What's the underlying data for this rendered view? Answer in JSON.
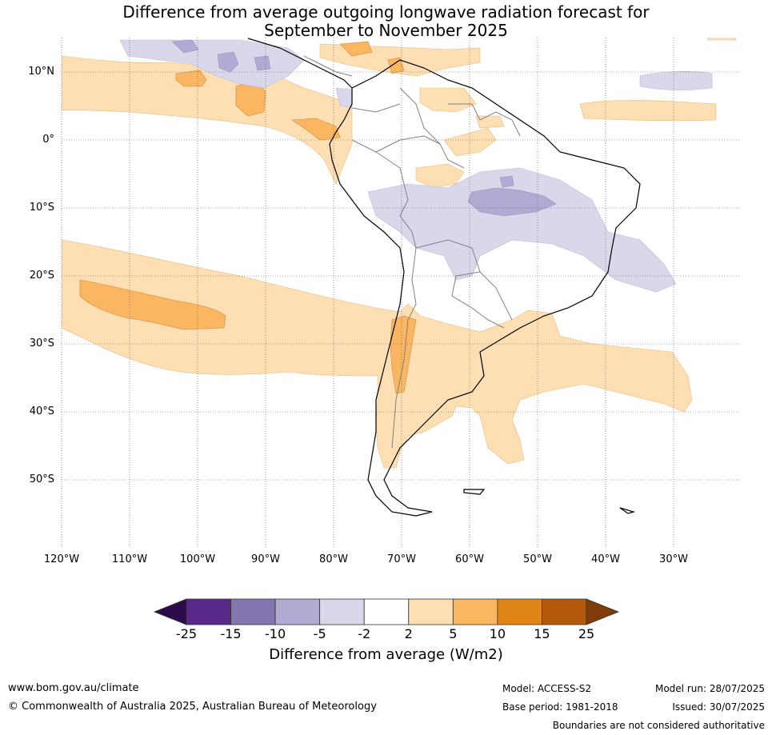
{
  "title": "Difference from average outgoing longwave radiation forecast for\nSeptember to November 2025",
  "map": {
    "lat_labels": [
      "10°N",
      "0°",
      "10°S",
      "20°S",
      "30°S",
      "40°S",
      "50°S"
    ],
    "lon_labels": [
      "120°W",
      "110°W",
      "100°W",
      "90°W",
      "80°W",
      "70°W",
      "60°W",
      "50°W",
      "40°W",
      "30°W"
    ],
    "colors": {
      "land_outline": "#000000",
      "country_border": "#808080",
      "gridline": "#555555"
    }
  },
  "colorbar": {
    "ticks": [
      "-25",
      "-15",
      "-10",
      "-5",
      "-2",
      "2",
      "5",
      "10",
      "15",
      "25"
    ],
    "colors": [
      "#2d0a4a",
      "#5a2a8a",
      "#8477b0",
      "#b1aad2",
      "#d8d8ea",
      "#ffffff",
      "#fddfb3",
      "#fbb662",
      "#e08618",
      "#b35a0a",
      "#7f3c08"
    ],
    "title": "Difference from average (W/m2)"
  },
  "footer": {
    "website": "www.bom.gov.au/climate",
    "copyright": "© Commonwealth of Australia 2025, Australian Bureau of Meteorology",
    "model": "Model: ACCESS-S2",
    "base_period": "Base period: 1981-2018",
    "model_run": "Model run: 28/07/2025",
    "issued": "Issued: 30/07/2025",
    "disclaimer": "Boundaries are not considered authoritative"
  }
}
